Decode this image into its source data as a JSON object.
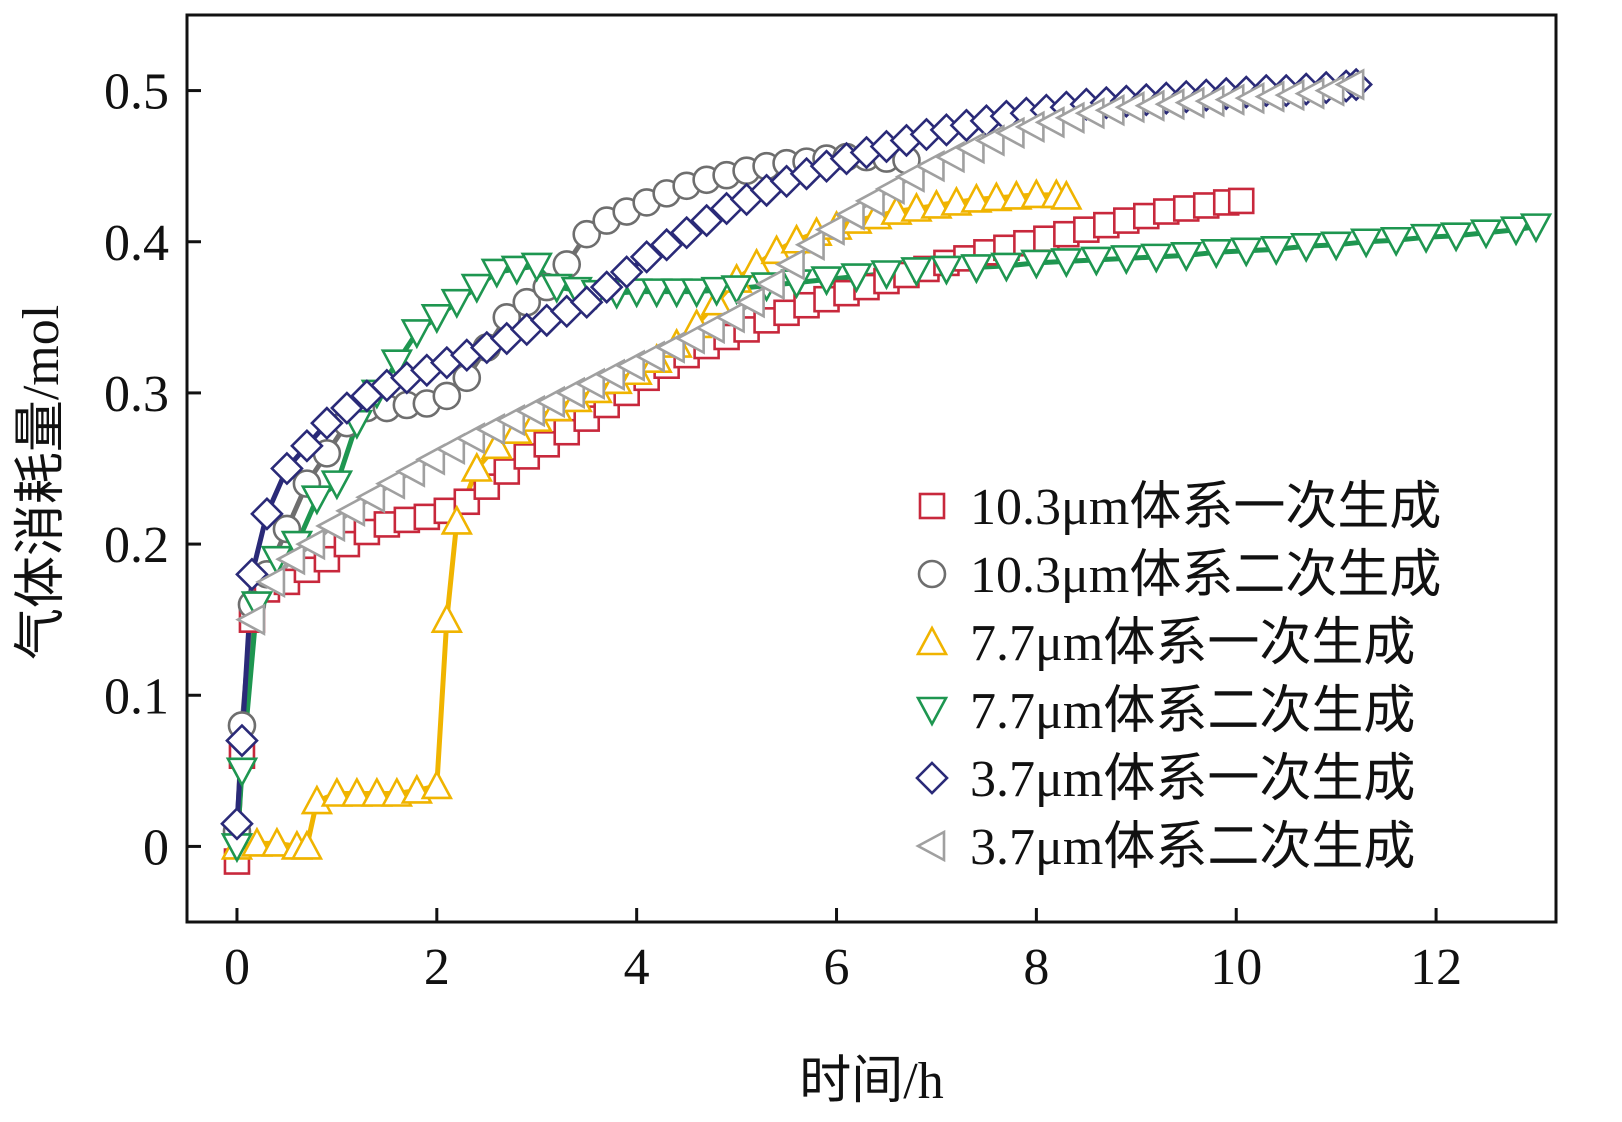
{
  "chart_data": {
    "type": "line",
    "xlabel": "时间/h",
    "ylabel": "气体消耗量/mol",
    "xlim": [
      -0.5,
      13.2
    ],
    "ylim": [
      -0.05,
      0.55
    ],
    "xticks": [
      0,
      2,
      4,
      6,
      8,
      10,
      12
    ],
    "yticks": [
      0,
      0.1,
      0.2,
      0.3,
      0.4,
      0.5
    ],
    "xtick_labels": [
      "0",
      "2",
      "4",
      "6",
      "8",
      "10",
      "12"
    ],
    "ytick_labels": [
      "0",
      "0.1",
      "0.2",
      "0.3",
      "0.4",
      "0.5"
    ],
    "grid": false,
    "legend_position": "bottom-right",
    "series": [
      {
        "name": "10.3μm体系一次生成",
        "marker": "square",
        "color": "#c8283c",
        "x": [
          0,
          0.05,
          0.15,
          0.3,
          0.5,
          0.7,
          0.9,
          1.1,
          1.3,
          1.5,
          1.7,
          1.9,
          2.1,
          2.3,
          2.5,
          2.7,
          2.9,
          3.1,
          3.3,
          3.5,
          3.7,
          3.9,
          4.1,
          4.3,
          4.5,
          4.7,
          4.9,
          5.1,
          5.3,
          5.5,
          5.7,
          5.9,
          6.1,
          6.3,
          6.5,
          6.7,
          6.9,
          7.1,
          7.3,
          7.5,
          7.7,
          7.9,
          8.1,
          8.3,
          8.5,
          8.7,
          8.9,
          9.1,
          9.3,
          9.5,
          9.7,
          9.9,
          10.05
        ],
        "y": [
          -0.01,
          0.06,
          0.15,
          0.17,
          0.175,
          0.183,
          0.19,
          0.2,
          0.208,
          0.213,
          0.216,
          0.218,
          0.222,
          0.228,
          0.238,
          0.248,
          0.258,
          0.266,
          0.274,
          0.283,
          0.292,
          0.3,
          0.31,
          0.318,
          0.325,
          0.331,
          0.337,
          0.342,
          0.348,
          0.353,
          0.358,
          0.362,
          0.366,
          0.37,
          0.374,
          0.378,
          0.382,
          0.386,
          0.389,
          0.393,
          0.396,
          0.399,
          0.402,
          0.405,
          0.408,
          0.411,
          0.414,
          0.417,
          0.42,
          0.422,
          0.424,
          0.426,
          0.427
        ]
      },
      {
        "name": "10.3μm体系二次生成",
        "marker": "circle",
        "color": "#6e6e6e",
        "x": [
          0,
          0.05,
          0.15,
          0.3,
          0.5,
          0.7,
          0.9,
          1.1,
          1.3,
          1.5,
          1.7,
          1.9,
          2.1,
          2.3,
          2.5,
          2.7,
          2.9,
          3.1,
          3.3,
          3.5,
          3.7,
          3.9,
          4.1,
          4.3,
          4.5,
          4.7,
          4.9,
          5.1,
          5.3,
          5.5,
          5.7,
          5.9,
          6.1,
          6.3,
          6.5,
          6.7
        ],
        "y": [
          0.01,
          0.08,
          0.16,
          0.18,
          0.21,
          0.24,
          0.26,
          0.28,
          0.29,
          0.29,
          0.292,
          0.293,
          0.298,
          0.31,
          0.33,
          0.35,
          0.36,
          0.37,
          0.385,
          0.405,
          0.414,
          0.42,
          0.426,
          0.432,
          0.437,
          0.441,
          0.444,
          0.447,
          0.45,
          0.452,
          0.453,
          0.455,
          0.456,
          0.456,
          0.455,
          0.454
        ]
      },
      {
        "name": "7.7μm体系一次生成",
        "marker": "triangle-up",
        "color": "#f0b400",
        "x": [
          0,
          0.2,
          0.4,
          0.6,
          0.7,
          0.8,
          1.0,
          1.2,
          1.4,
          1.6,
          1.8,
          2.0,
          2.1,
          2.2,
          2.4,
          2.6,
          2.8,
          3.0,
          3.2,
          3.4,
          3.6,
          3.8,
          4.0,
          4.2,
          4.4,
          4.6,
          4.8,
          5.0,
          5.2,
          5.4,
          5.6,
          5.8,
          6.0,
          6.2,
          6.4,
          6.6,
          6.8,
          7.0,
          7.2,
          7.4,
          7.6,
          7.8,
          8.0,
          8.2,
          8.3
        ],
        "y": [
          0.0,
          0.002,
          0.002,
          0.0,
          0.0,
          0.03,
          0.035,
          0.035,
          0.035,
          0.035,
          0.037,
          0.04,
          0.15,
          0.215,
          0.25,
          0.265,
          0.275,
          0.283,
          0.29,
          0.296,
          0.302,
          0.308,
          0.314,
          0.322,
          0.332,
          0.345,
          0.36,
          0.375,
          0.385,
          0.394,
          0.401,
          0.406,
          0.41,
          0.414,
          0.417,
          0.42,
          0.422,
          0.424,
          0.426,
          0.428,
          0.429,
          0.43,
          0.431,
          0.431,
          0.43
        ]
      },
      {
        "name": "7.7μm体系二次生成",
        "marker": "triangle-down",
        "color": "#1e9650",
        "x": [
          0,
          0.05,
          0.2,
          0.4,
          0.6,
          0.8,
          1.0,
          1.2,
          1.4,
          1.6,
          1.8,
          2.0,
          2.2,
          2.4,
          2.6,
          2.8,
          3.0,
          3.2,
          3.4,
          3.6,
          3.8,
          4.0,
          4.2,
          4.4,
          4.6,
          4.8,
          5.0,
          5.3,
          5.6,
          5.9,
          6.2,
          6.5,
          6.8,
          7.1,
          7.4,
          7.7,
          8.0,
          8.3,
          8.6,
          8.9,
          9.2,
          9.5,
          9.8,
          10.1,
          10.4,
          10.7,
          11.0,
          11.3,
          11.6,
          11.9,
          12.2,
          12.5,
          12.8,
          13.0
        ],
        "y": [
          0.0,
          0.05,
          0.16,
          0.19,
          0.2,
          0.23,
          0.24,
          0.28,
          0.3,
          0.32,
          0.34,
          0.35,
          0.36,
          0.37,
          0.38,
          0.382,
          0.384,
          0.37,
          0.368,
          0.366,
          0.366,
          0.367,
          0.367,
          0.367,
          0.367,
          0.368,
          0.369,
          0.371,
          0.373,
          0.375,
          0.377,
          0.379,
          0.381,
          0.382,
          0.383,
          0.384,
          0.386,
          0.387,
          0.388,
          0.389,
          0.39,
          0.391,
          0.393,
          0.394,
          0.395,
          0.397,
          0.398,
          0.4,
          0.401,
          0.403,
          0.404,
          0.406,
          0.408,
          0.41
        ]
      },
      {
        "name": "3.7μm体系一次生成",
        "marker": "diamond",
        "color": "#2a2a78",
        "x": [
          0,
          0.05,
          0.15,
          0.3,
          0.5,
          0.7,
          0.9,
          1.1,
          1.3,
          1.5,
          1.7,
          1.9,
          2.1,
          2.3,
          2.5,
          2.7,
          2.9,
          3.1,
          3.3,
          3.5,
          3.7,
          3.9,
          4.1,
          4.3,
          4.5,
          4.7,
          4.9,
          5.1,
          5.3,
          5.5,
          5.7,
          5.9,
          6.1,
          6.3,
          6.5,
          6.7,
          6.9,
          7.1,
          7.3,
          7.5,
          7.7,
          7.9,
          8.1,
          8.3,
          8.5,
          8.7,
          8.9,
          9.1,
          9.3,
          9.5,
          9.7,
          9.9,
          10.1,
          10.3,
          10.5,
          10.7,
          10.9,
          11.1,
          11.2
        ],
        "y": [
          0.015,
          0.07,
          0.18,
          0.22,
          0.25,
          0.265,
          0.28,
          0.29,
          0.298,
          0.305,
          0.31,
          0.315,
          0.32,
          0.325,
          0.33,
          0.336,
          0.342,
          0.348,
          0.354,
          0.36,
          0.37,
          0.38,
          0.39,
          0.398,
          0.406,
          0.414,
          0.422,
          0.428,
          0.434,
          0.44,
          0.445,
          0.45,
          0.455,
          0.459,
          0.463,
          0.467,
          0.471,
          0.474,
          0.477,
          0.48,
          0.483,
          0.485,
          0.487,
          0.489,
          0.491,
          0.492,
          0.493,
          0.494,
          0.495,
          0.496,
          0.497,
          0.498,
          0.499,
          0.5,
          0.5,
          0.501,
          0.502,
          0.503,
          0.504
        ]
      },
      {
        "name": "3.7μm体系二次生成",
        "marker": "triangle-left",
        "color": "#a0a0a0",
        "x": [
          0.15,
          0.35,
          0.55,
          0.75,
          0.95,
          1.15,
          1.35,
          1.55,
          1.75,
          1.95,
          2.15,
          2.35,
          2.55,
          2.75,
          2.95,
          3.15,
          3.35,
          3.55,
          3.75,
          3.95,
          4.15,
          4.35,
          4.55,
          4.75,
          4.95,
          5.15,
          5.35,
          5.55,
          5.75,
          5.95,
          6.15,
          6.35,
          6.55,
          6.75,
          6.95,
          7.15,
          7.35,
          7.55,
          7.75,
          7.95,
          8.15,
          8.35,
          8.55,
          8.75,
          8.95,
          9.15,
          9.35,
          9.55,
          9.75,
          9.95,
          10.15,
          10.35,
          10.55,
          10.75,
          10.95,
          11.15
        ],
        "y": [
          0.15,
          0.175,
          0.19,
          0.2,
          0.212,
          0.222,
          0.231,
          0.24,
          0.248,
          0.256,
          0.263,
          0.27,
          0.276,
          0.282,
          0.288,
          0.294,
          0.3,
          0.306,
          0.312,
          0.318,
          0.324,
          0.33,
          0.336,
          0.343,
          0.35,
          0.36,
          0.372,
          0.385,
          0.398,
          0.408,
          0.418,
          0.427,
          0.435,
          0.443,
          0.45,
          0.456,
          0.462,
          0.467,
          0.472,
          0.476,
          0.479,
          0.482,
          0.485,
          0.487,
          0.489,
          0.49,
          0.491,
          0.492,
          0.493,
          0.494,
          0.495,
          0.496,
          0.497,
          0.498,
          0.5,
          0.504
        ]
      }
    ]
  }
}
